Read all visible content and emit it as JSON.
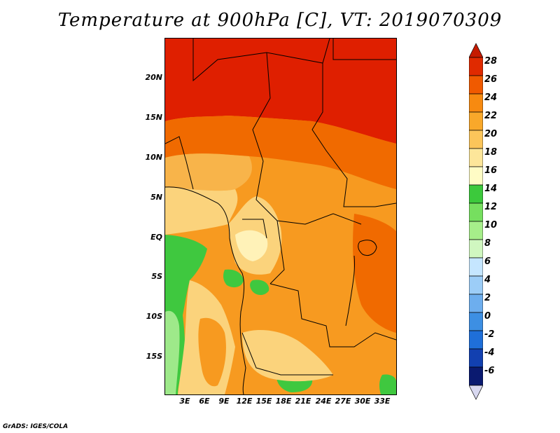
{
  "title": "Temperature at 900hPa [C], VT: 2019070309",
  "credit": "GrADS: IGES/COLA",
  "latitude_labels": [
    "20N",
    "15N",
    "10N",
    "5N",
    "EQ",
    "5S",
    "10S",
    "15S"
  ],
  "longitude_labels": [
    "3E",
    "6E",
    "9E",
    "12E",
    "15E",
    "18E",
    "21E",
    "24E",
    "27E",
    "30E",
    "33E"
  ],
  "colorbar": {
    "labels": [
      "28",
      "26",
      "24",
      "22",
      "20",
      "18",
      "16",
      "14",
      "12",
      "10",
      "8",
      "6",
      "4",
      "2",
      "0",
      "-2",
      "-4",
      "-6"
    ],
    "colors": [
      "#c51b00",
      "#e02a00",
      "#f05a00",
      "#f78a10",
      "#f9a82a",
      "#fbc55a",
      "#fde69a",
      "#fffcc5",
      "#3cc93c",
      "#76df5f",
      "#a6ee8a",
      "#d0f7c0",
      "#c5e6ff",
      "#9ccdf7",
      "#6daeee",
      "#3d8fe3",
      "#1f6fd9",
      "#1240b0",
      "#0a1a70",
      "#d8d8f0"
    ]
  },
  "colors": {
    "hot": "#df1f00",
    "warm": "#f06a00",
    "orange": "#f79a20",
    "light_orange": "#f8b44a",
    "yellow": "#fbd37c",
    "pale": "#fff2b8",
    "green": "#3fc83f",
    "light_green": "#9ee98a"
  }
}
